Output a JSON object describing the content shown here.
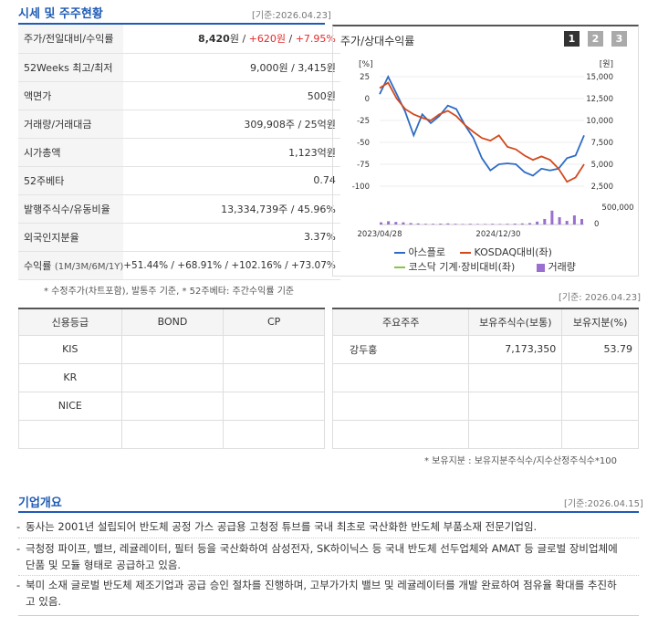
{
  "market": {
    "title_a": "시세",
    "title_b": " 및 주주현황",
    "basis": "[기준:2026.04.23]",
    "price_label": "주가/전일대비/수익률",
    "price": "8,420",
    "price_unit": "원",
    "sep1": " / ",
    "change": "+620",
    "change_unit": "원",
    "sep2": " / ",
    "change_pct": "+7.95%",
    "rows": [
      {
        "label": "52Weeks 최고/최저",
        "value": "9,000원 / 3,415원"
      },
      {
        "label": "액면가",
        "value": "500원"
      },
      {
        "label": "거래량/거래대금",
        "value": "309,908주 / 25억원"
      },
      {
        "label": "시가총액",
        "value": "1,123억원"
      },
      {
        "label": "52주베타",
        "value": "0.74"
      },
      {
        "label": "발행주식수/유동비율",
        "value": "13,334,739주 / 45.96%"
      },
      {
        "label": "외국인지분율",
        "value": "3.37%"
      }
    ],
    "return_label": "수익률",
    "return_periods": "(1M/3M/6M/1Y)",
    "return_values": "+51.44% / +68.91% / +102.16% / +73.07%",
    "footnote": "* 수정주가(차트포함), 발통주 기준, * 52주베타: 주간수익률 기준"
  },
  "chart": {
    "title": "주가/상대수익률",
    "tabs": [
      "1",
      "2",
      "3"
    ],
    "left_unit": "[%]",
    "right_unit": "[원]",
    "vol_tick": "500,000",
    "vol_zero": "0",
    "legend": {
      "s1": "아스플로",
      "s2": "KOSDAQ대비(좌)",
      "s3": "코스닥 기계·장비대비(좌)",
      "s4": "거래량"
    }
  },
  "chart_data": {
    "type": "line",
    "title": "주가/상대수익률",
    "x_range": [
      "2023/04/28",
      "2026/04/23"
    ],
    "x_ticks": [
      "2023/04/28",
      "2024/12/30"
    ],
    "left_axis": {
      "unit": "[%]",
      "ticks": [
        25,
        0,
        -25,
        -50,
        -75,
        -100
      ],
      "ylim": [
        -100,
        25
      ]
    },
    "right_axis": {
      "unit": "[원]",
      "ticks": [
        "15,000",
        "12,500",
        "10,000",
        "7,500",
        "5,000",
        "2,500"
      ],
      "ylim": [
        2500,
        15000
      ]
    },
    "series": [
      {
        "name": "아스플로",
        "axis": "left",
        "color": "#2e6cc4",
        "values": [
          5,
          25,
          5,
          -15,
          -42,
          -18,
          -28,
          -20,
          -8,
          -12,
          -30,
          -45,
          -68,
          -82,
          -75,
          -74,
          -75,
          -84,
          -88,
          -80,
          -82,
          -80,
          -68,
          -65,
          -42
        ]
      },
      {
        "name": "KOSDAQ대비(좌)",
        "axis": "left",
        "color": "#d24a1e",
        "values": [
          12,
          18,
          0,
          -12,
          -18,
          -22,
          -25,
          -18,
          -14,
          -20,
          -30,
          -38,
          -45,
          -48,
          -42,
          -55,
          -58,
          -65,
          -70,
          -66,
          -70,
          -80,
          -95,
          -90,
          -75
        ]
      },
      {
        "name": "코스닥 기계·장비대비(좌)",
        "axis": "left",
        "color": "#8bc34a",
        "values": []
      }
    ],
    "volume": {
      "name": "거래량",
      "color": "#9b6fd0",
      "ylim": [
        0,
        500000
      ],
      "values": [
        60000,
        90000,
        70000,
        60000,
        40000,
        30000,
        20000,
        20000,
        25000,
        30000,
        20000,
        15000,
        20000,
        15000,
        15000,
        20000,
        15000,
        20000,
        25000,
        30000,
        40000,
        80000,
        150000,
        380000,
        200000,
        100000,
        250000,
        150000
      ]
    }
  },
  "credit": {
    "headers": [
      "신용등급",
      "BOND",
      "CP"
    ],
    "rows": [
      [
        "KIS",
        "",
        ""
      ],
      [
        "KR",
        "",
        ""
      ],
      [
        "NICE",
        "",
        ""
      ],
      [
        "",
        "",
        ""
      ]
    ]
  },
  "holders": {
    "basis": "[기준: 2026.04.23]",
    "headers": [
      "주요주주",
      "보유주식수(보통)",
      "보유지분(%)"
    ],
    "rows": [
      [
        "강두홍",
        "7,173,350",
        "53.79"
      ],
      [
        "",
        "",
        ""
      ],
      [
        "",
        "",
        ""
      ],
      [
        "",
        "",
        ""
      ]
    ],
    "footnote": "* 보유지분 : 보유지분주식수/지수산정주식수*100"
  },
  "overview": {
    "title": "기업개요",
    "basis": "[기준:2026.04.15]",
    "bullets": [
      "동사는 2001년 설립되어 반도체 공정 가스 공급용 고청정 튜브를 국내 최초로 국산화한 반도체 부품소재 전문기업임.",
      "극청정 파이프, 밸브, 레귤레이터, 필터 등을 국산화하여 삼성전자, SK하이닉스 등 국내 반도체 선두업체와 AMAT 등 글로벌 장비업체에 단품 및 모듈 형태로 공급하고 있음.",
      "북미 소재 글로벌 반도체 제조기업과 공급 승인 절차를 진행하며, 고부가가치 밸브 및 레귤레이터를 개발 완료하여 점유율 확대를 추진하고 있음."
    ]
  }
}
